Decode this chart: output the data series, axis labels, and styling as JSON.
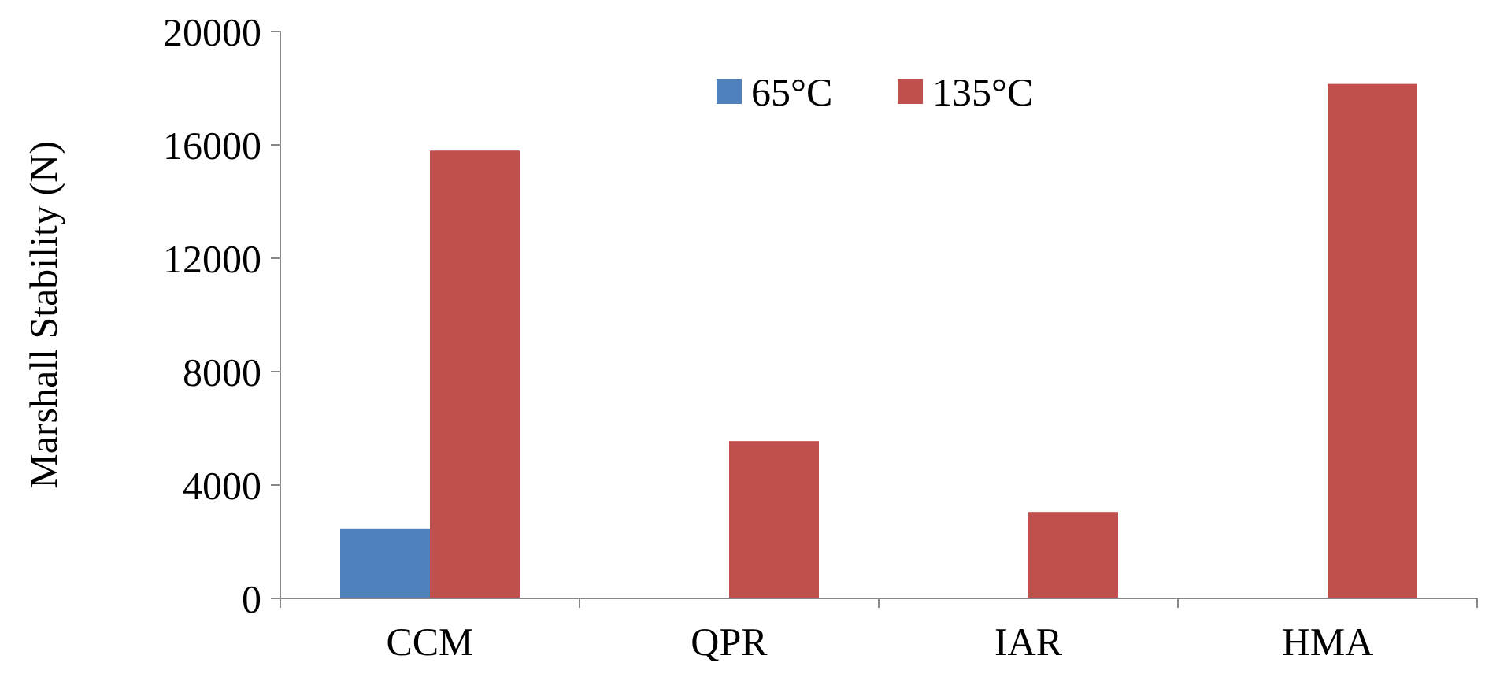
{
  "chart_data": {
    "type": "bar",
    "ylabel": "Marshall Stability (N)",
    "categories": [
      "CCM",
      "QPR",
      "IAR",
      "HMA"
    ],
    "series": [
      {
        "name": "65°C",
        "color": "#4f81bd",
        "values": [
          2450,
          null,
          null,
          null
        ]
      },
      {
        "name": "135°C",
        "color": "#c0504d",
        "values": [
          15800,
          5550,
          3050,
          18150
        ]
      }
    ],
    "ylim": [
      0,
      20000
    ],
    "yticks": [
      0,
      4000,
      8000,
      12000,
      16000,
      20000
    ],
    "grid": false,
    "legend": "top"
  }
}
